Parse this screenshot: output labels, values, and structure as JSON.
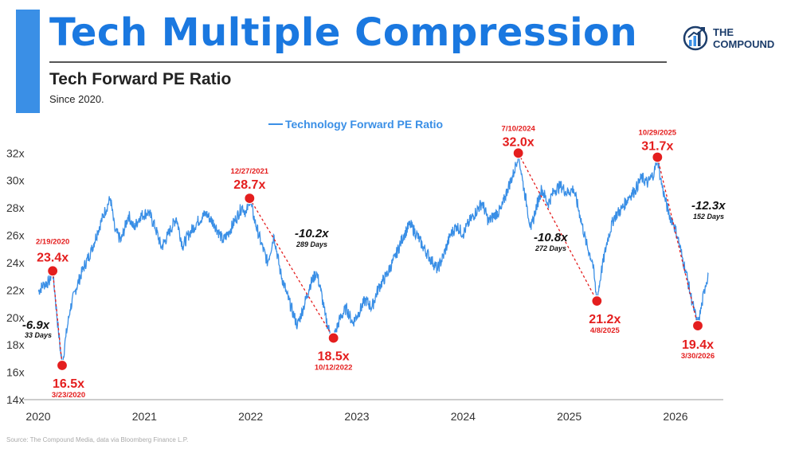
{
  "header": {
    "title": "Tech Multiple Compression",
    "subtitle": "Tech Forward PE Ratio",
    "since": "Since 2020."
  },
  "logo": {
    "line1": "THE",
    "line2": "COMPOUND",
    "icon": "compound-chart-icon",
    "color": "#1c3d6b"
  },
  "source": "Source: The Compound Media, data via Bloomberg Finance L.P.",
  "colors": {
    "title": "#1a78e0",
    "accent_bar": "#3a8fe6",
    "line": "#3a8fe6",
    "annotation_red": "#e41e1e",
    "drawdown_dash": "#e41e1e"
  },
  "chart_data": {
    "type": "line",
    "title": "",
    "xlabel": "",
    "ylabel": "",
    "legend_position": "top-center",
    "grid": false,
    "x_ticks": [
      "2020",
      "2021",
      "2022",
      "2023",
      "2024",
      "2025",
      "2026"
    ],
    "y_ticks": [
      "14x",
      "16x",
      "18x",
      "20x",
      "22x",
      "24x",
      "26x",
      "28x",
      "30x",
      "32x"
    ],
    "ylim": [
      14,
      32.6
    ],
    "xlim": [
      2020.0,
      2026.45
    ],
    "series": [
      {
        "name": "Technology Forward PE Ratio",
        "points": [
          [
            2020.0,
            21.9
          ],
          [
            2020.05,
            22.4
          ],
          [
            2020.1,
            22.6
          ],
          [
            2020.136,
            23.4
          ],
          [
            2020.16,
            21.5
          ],
          [
            2020.19,
            19.0
          ],
          [
            2020.225,
            16.5
          ],
          [
            2020.26,
            18.6
          ],
          [
            2020.3,
            20.6
          ],
          [
            2020.35,
            22.0
          ],
          [
            2020.42,
            23.5
          ],
          [
            2020.5,
            24.9
          ],
          [
            2020.56,
            26.3
          ],
          [
            2020.63,
            27.8
          ],
          [
            2020.68,
            28.7
          ],
          [
            2020.72,
            26.4
          ],
          [
            2020.78,
            25.6
          ],
          [
            2020.85,
            27.5
          ],
          [
            2020.9,
            26.5
          ],
          [
            2020.96,
            27.4
          ],
          [
            2021.04,
            27.7
          ],
          [
            2021.1,
            26.6
          ],
          [
            2021.16,
            25.1
          ],
          [
            2021.22,
            26.0
          ],
          [
            2021.3,
            27.3
          ],
          [
            2021.36,
            25.2
          ],
          [
            2021.42,
            26.1
          ],
          [
            2021.5,
            27.0
          ],
          [
            2021.58,
            27.6
          ],
          [
            2021.66,
            26.8
          ],
          [
            2021.74,
            25.6
          ],
          [
            2021.8,
            26.3
          ],
          [
            2021.86,
            27.2
          ],
          [
            2021.92,
            28.1
          ],
          [
            2021.96,
            27.6
          ],
          [
            2021.99,
            28.7
          ],
          [
            2022.04,
            27.0
          ],
          [
            2022.1,
            25.4
          ],
          [
            2022.16,
            24.0
          ],
          [
            2022.22,
            26.0
          ],
          [
            2022.28,
            23.3
          ],
          [
            2022.34,
            21.7
          ],
          [
            2022.4,
            20.3
          ],
          [
            2022.44,
            19.4
          ],
          [
            2022.5,
            20.8
          ],
          [
            2022.56,
            22.4
          ],
          [
            2022.62,
            23.3
          ],
          [
            2022.66,
            22.0
          ],
          [
            2022.7,
            20.2
          ],
          [
            2022.74,
            19.0
          ],
          [
            2022.78,
            18.5
          ],
          [
            2022.84,
            19.9
          ],
          [
            2022.9,
            20.7
          ],
          [
            2022.96,
            19.6
          ],
          [
            2023.02,
            20.4
          ],
          [
            2023.08,
            21.3
          ],
          [
            2023.14,
            20.7
          ],
          [
            2023.2,
            22.1
          ],
          [
            2023.28,
            23.1
          ],
          [
            2023.36,
            24.4
          ],
          [
            2023.44,
            26.0
          ],
          [
            2023.5,
            26.8
          ],
          [
            2023.56,
            26.1
          ],
          [
            2023.62,
            25.2
          ],
          [
            2023.7,
            24.2
          ],
          [
            2023.76,
            23.5
          ],
          [
            2023.82,
            24.6
          ],
          [
            2023.88,
            26.0
          ],
          [
            2023.94,
            26.7
          ],
          [
            2024.0,
            26.1
          ],
          [
            2024.06,
            27.0
          ],
          [
            2024.12,
            27.7
          ],
          [
            2024.18,
            28.4
          ],
          [
            2024.24,
            27.0
          ],
          [
            2024.3,
            27.5
          ],
          [
            2024.36,
            27.9
          ],
          [
            2024.42,
            29.4
          ],
          [
            2024.48,
            30.6
          ],
          [
            2024.52,
            32.0
          ],
          [
            2024.56,
            30.0
          ],
          [
            2024.6,
            28.2
          ],
          [
            2024.64,
            26.4
          ],
          [
            2024.68,
            27.8
          ],
          [
            2024.74,
            29.4
          ],
          [
            2024.8,
            28.3
          ],
          [
            2024.86,
            29.3
          ],
          [
            2024.92,
            29.6
          ],
          [
            2024.98,
            29.1
          ],
          [
            2025.04,
            29.4
          ],
          [
            2025.1,
            27.5
          ],
          [
            2025.16,
            25.4
          ],
          [
            2025.22,
            24.0
          ],
          [
            2025.26,
            21.2
          ],
          [
            2025.3,
            23.3
          ],
          [
            2025.36,
            25.7
          ],
          [
            2025.42,
            27.3
          ],
          [
            2025.5,
            28.0
          ],
          [
            2025.56,
            28.8
          ],
          [
            2025.62,
            29.3
          ],
          [
            2025.68,
            30.2
          ],
          [
            2025.74,
            29.8
          ],
          [
            2025.8,
            30.6
          ],
          [
            2025.83,
            31.7
          ],
          [
            2025.86,
            30.1
          ],
          [
            2025.9,
            28.7
          ],
          [
            2025.94,
            27.5
          ],
          [
            2025.98,
            26.9
          ],
          [
            2026.02,
            25.9
          ],
          [
            2026.06,
            24.5
          ],
          [
            2026.1,
            23.3
          ],
          [
            2026.14,
            21.7
          ],
          [
            2026.18,
            20.4
          ],
          [
            2026.21,
            19.4
          ],
          [
            2026.25,
            21.0
          ],
          [
            2026.28,
            22.3
          ],
          [
            2026.31,
            23.2
          ]
        ]
      }
    ],
    "annotations": {
      "peaks": [
        {
          "label": "23.4x",
          "date": "2/19/2020",
          "x": 2020.136,
          "y": 23.4,
          "date_above": true
        },
        {
          "label": "16.5x",
          "date": "3/23/2020",
          "x": 2020.225,
          "y": 16.5,
          "date_above": false
        },
        {
          "label": "28.7x",
          "date": "12/27/2021",
          "x": 2021.99,
          "y": 28.7,
          "date_above": true
        },
        {
          "label": "18.5x",
          "date": "10/12/2022",
          "x": 2022.78,
          "y": 18.5,
          "date_above": false
        },
        {
          "label": "32.0x",
          "date": "7/10/2024",
          "x": 2024.52,
          "y": 32.0,
          "date_above": true
        },
        {
          "label": "21.2x",
          "date": "4/8/2025",
          "x": 2025.26,
          "y": 21.2,
          "date_above": false
        },
        {
          "label": "31.7x",
          "date": "10/29/2025",
          "x": 2025.83,
          "y": 31.7,
          "date_above": true
        },
        {
          "label": "19.4x",
          "date": "3/30/2026",
          "x": 2026.21,
          "y": 19.4,
          "date_above": false
        }
      ],
      "drawdowns": [
        {
          "change": "-6.9x",
          "duration": "33 Days",
          "from": 0,
          "to": 1
        },
        {
          "change": "-10.2x",
          "duration": "289 Days",
          "from": 2,
          "to": 3
        },
        {
          "change": "-10.8x",
          "duration": "272 Days",
          "from": 4,
          "to": 5
        },
        {
          "change": "-12.3x",
          "duration": "152 Days",
          "from": 6,
          "to": 7
        }
      ]
    }
  }
}
